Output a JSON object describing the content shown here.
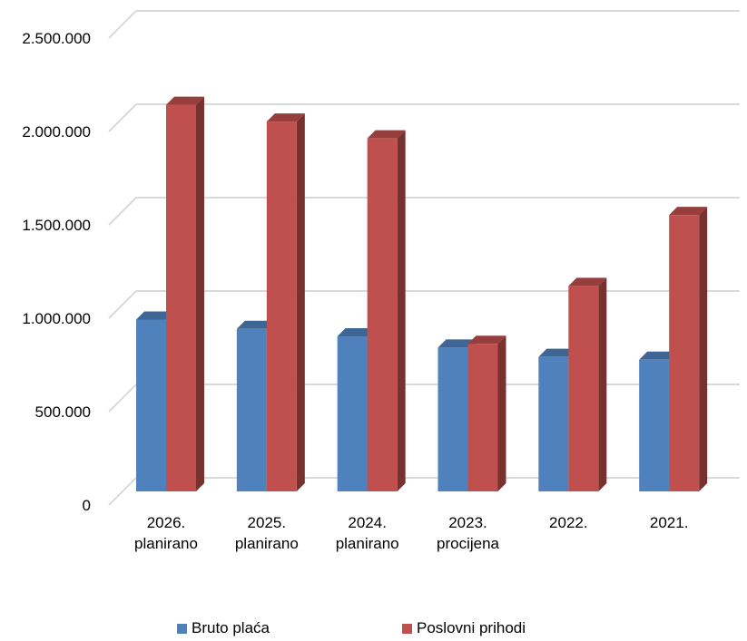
{
  "chart_data": {
    "type": "bar",
    "categories": [
      [
        "2026.",
        "planirano"
      ],
      [
        "2025.",
        "planirano"
      ],
      [
        "2024.",
        "planirano"
      ],
      [
        "2023.",
        "procijena"
      ],
      [
        "2022."
      ],
      [
        "2021."
      ]
    ],
    "series": [
      {
        "name": "Bruto plaća",
        "color": "#4F81BD",
        "values": [
          920000,
          870000,
          830000,
          770000,
          720000,
          705000
        ]
      },
      {
        "name": "Poslovni prihodi",
        "color": "#C0504D",
        "values": [
          2070000,
          1980000,
          1890000,
          790000,
          1100000,
          1480000
        ]
      }
    ],
    "y_ticks": [
      "0",
      "500.000",
      "1.000.000",
      "1.500.000",
      "2.000.000",
      "2.500.000"
    ],
    "ylim": [
      0,
      2500000
    ],
    "grid": true,
    "legend_position": "bottom",
    "three_d": true
  }
}
